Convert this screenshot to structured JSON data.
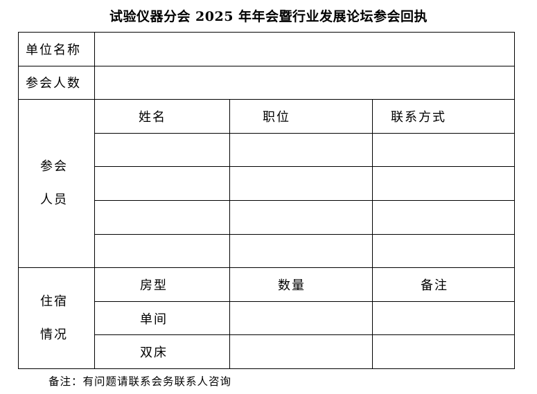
{
  "title": "试验仪器分会 2025 年年会暨行业发展论坛参会回执",
  "rows": {
    "unit_name": "单位名称",
    "attendee_count": "参会人数"
  },
  "attendees": {
    "label_line1": "参会",
    "label_line2": "人员",
    "headers": [
      "姓名",
      "职位",
      "联系方式"
    ],
    "rows": [
      [
        "",
        "",
        ""
      ],
      [
        "",
        "",
        ""
      ],
      [
        "",
        "",
        ""
      ],
      [
        "",
        "",
        ""
      ]
    ]
  },
  "lodging": {
    "label_line1": "住宿",
    "label_line2": "情况",
    "headers": [
      "房型",
      "数量",
      "备注"
    ],
    "room_types": [
      "单间",
      "双床"
    ]
  },
  "note": "备注：有问题请联系会务联系人咨询"
}
